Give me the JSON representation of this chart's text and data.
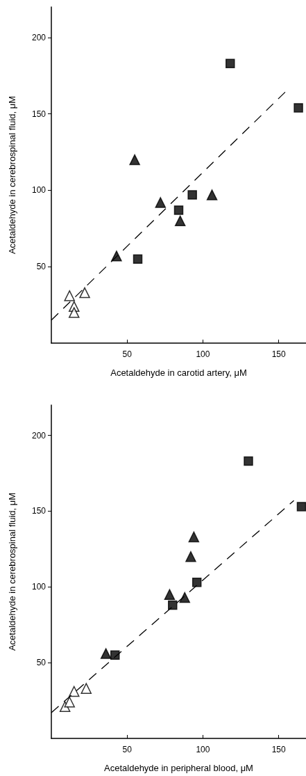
{
  "chart_data": [
    {
      "type": "scatter",
      "xlabel": "Acetaldehyde in carotid artery, μM",
      "ylabel": "Acetaldehyde in cerebrospinal fluid, μM",
      "xlim": [
        0,
        168
      ],
      "ylim": [
        0,
        220
      ],
      "xticks": [
        50,
        100,
        150
      ],
      "yticks": [
        50,
        100,
        150,
        200
      ],
      "grid": false,
      "series": [
        {
          "color": "#000000",
          "marker": "square",
          "x": [
            118,
            163,
            93,
            84,
            57
          ],
          "values": [
            183,
            154,
            97,
            87,
            55
          ]
        },
        {
          "color": "#000000",
          "marker": "triangle",
          "x": [
            55,
            72,
            106,
            85,
            43
          ],
          "values": [
            120,
            92,
            97,
            80,
            57
          ]
        },
        {
          "color": "#ffffff",
          "marker": "triangle",
          "x": [
            12,
            22,
            15,
            15
          ],
          "values": [
            31,
            33,
            24,
            20
          ]
        },
        {
          "type": "line",
          "color": "#000000",
          "line_style": "dashed",
          "marker": "none",
          "x": [
            0,
            155
          ],
          "values": [
            15,
            165
          ]
        }
      ]
    },
    {
      "type": "scatter",
      "xlabel": "Acetaldehyde in peripheral blood, μM",
      "ylabel": "Acetaldehyde in cerebrospinal fluid, μM",
      "xlim": [
        0,
        168
      ],
      "ylim": [
        0,
        220
      ],
      "xticks": [
        50,
        100,
        150
      ],
      "yticks": [
        50,
        100,
        150,
        200
      ],
      "grid": false,
      "series": [
        {
          "color": "#000000",
          "marker": "square",
          "x": [
            130,
            165,
            96,
            80,
            42
          ],
          "values": [
            183,
            153,
            103,
            88,
            55
          ]
        },
        {
          "color": "#000000",
          "marker": "triangle",
          "x": [
            94,
            92,
            78,
            88,
            36
          ],
          "values": [
            133,
            120,
            95,
            93,
            56
          ]
        },
        {
          "color": "#ffffff",
          "marker": "triangle",
          "x": [
            9,
            12,
            15,
            23
          ],
          "values": [
            21,
            24,
            31,
            33
          ]
        },
        {
          "type": "line",
          "color": "#000000",
          "line_style": "dashed",
          "marker": "none",
          "x": [
            0,
            160
          ],
          "values": [
            17,
            157
          ]
        }
      ]
    }
  ]
}
